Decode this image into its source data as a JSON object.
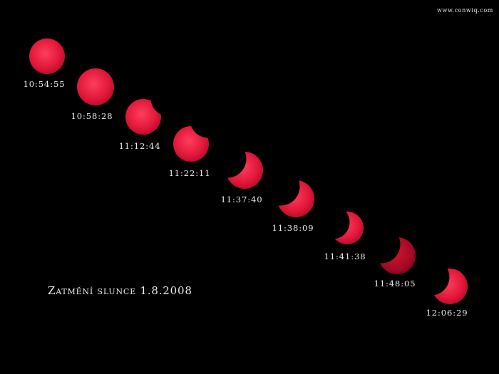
{
  "credit": "www.conwiq.com",
  "caption": "Zatmění slunce 1.8.2008",
  "colors": {
    "background": "#000000",
    "sun": "#e0173a",
    "sun_bright": "#ff3d5c",
    "sun_dark": "#a00a24",
    "text": "#eeeeee"
  },
  "phases": [
    {
      "time": "10:54:55"
    },
    {
      "time": "10:58:28"
    },
    {
      "time": "11:12:44"
    },
    {
      "time": "11:22:11"
    },
    {
      "time": "11:37:40"
    },
    {
      "time": "11:38:09"
    },
    {
      "time": "11:41:38"
    },
    {
      "time": "11:48:05"
    },
    {
      "time": "12:06:29"
    }
  ]
}
